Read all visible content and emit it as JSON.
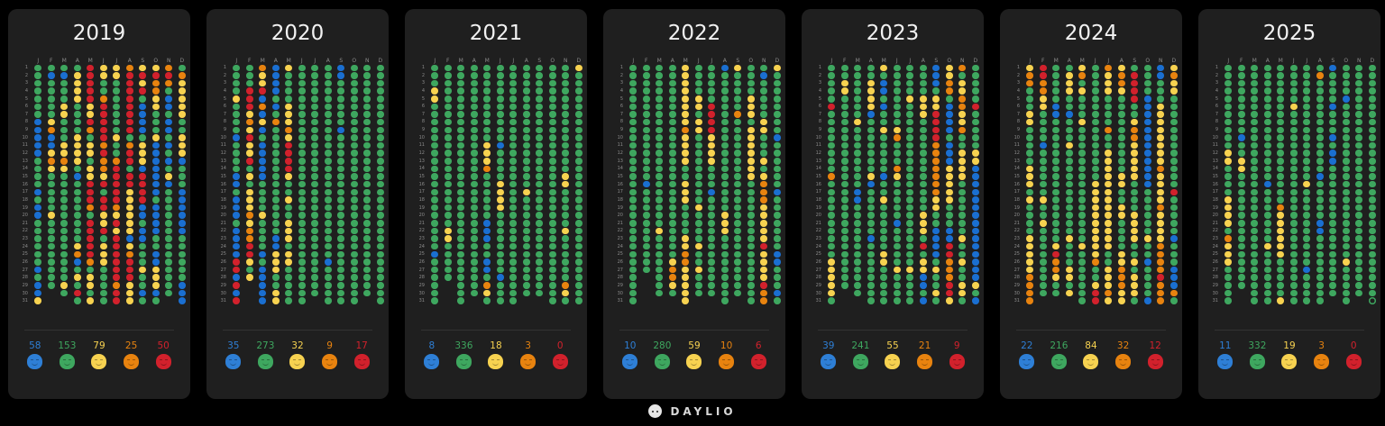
{
  "app": {
    "brand": "DAYLIO"
  },
  "month_labels": [
    "J",
    "F",
    "M",
    "A",
    "M",
    "J",
    "J",
    "A",
    "S",
    "O",
    "N",
    "D"
  ],
  "mood_colors": {
    "g": "#3ea75f",
    "b": "#1a6fd1",
    "y": "#f7d250",
    "o": "#e8830f",
    "r": "#d2212c"
  },
  "mood_order": [
    {
      "key": "b",
      "name": "meh-blue",
      "color": "#2e7fd6"
    },
    {
      "key": "g",
      "name": "good-green",
      "color": "#3ea75f"
    },
    {
      "key": "y",
      "name": "rad-yellow",
      "color": "#f7d250"
    },
    {
      "key": "o",
      "name": "bad-orange",
      "color": "#e8830f"
    },
    {
      "key": "r",
      "name": "awful-red",
      "color": "#d2212c"
    }
  ],
  "years": [
    {
      "year": "2019",
      "counts": [
        "58",
        "153",
        "79",
        "25",
        "50"
      ],
      "months": [
        "gggggggbbbbbggggbgbbggggggbgbbyg",
        "gbgggggyobbyoygggggyggggggggg--",
        "gbgggyygggyyoyggggggggggggggyg",
        "gyyyyggggyyyygbggggggggyobgygrg",
        "rrrrryyrogyygyyrrrogrrrrrogyygyy",
        "yyggorrrrrorooyrgrryyrgyyyggggg",
        "yygggggggyggorrrrroyryrrrrrrorrr",
        "orrrrrrrrgorrgrryyyyyybyorrryyyy",
        "yryrgbbbbgyyybrrrrbbgbbgggyggbgr",
        "yrooyygggybbbbbbbgbbbbggbbyyybgb",
        "orogbbgbbgbgbgybgggggggggggggg",
        "goyyyyyggyyybgggbbbbbbggggggbbbb"
      ]
    },
    {
      "year": "2020",
      "counts": [
        "35",
        "273",
        "32",
        "9",
        "17"
      ],
      "months": [
        "ggggyggggbggggbbgbbbgbbbbrrbrbr",
        "gggrrryoyryyrgygyyyoyoorrygy--",
        "oyyrbobybgbbbbbggggyggggbgbbbbbb",
        "bbbbgbgoggggggggggggggbbyyyggyyg",
        "yggggyyyoyrrrryggyggyyygyyggggg",
        "ggggggggggggggggggggggggggggggg",
        "gggggggggggggggggggggggggggggg",
        "gggggggggggggggggggggggggbgggggb",
        "bbggggggbgggggggggggggggggggggg",
        "ggggggggggggggggggggggggggggggg",
        "gggggggggggggggggggggggggggggg",
        "ggggggggggggggggggggggggggggggg"
      ]
    },
    {
      "year": "2021",
      "counts": [
        "8",
        "336",
        "18",
        "3",
        "0"
      ],
      "months": [
        "gggyygggggggggggggggggggbggggggg",
        "gggggggggggggggggggggyyggggg---",
        "ggggggggggggggggggggggggggggggg",
        "gggggggggggggggggggggggggggggg",
        "ggggggggggyyyoggggggbbbggbbgoyg",
        "ggggggggggbggggyyyyggggggggbgggg",
        "ggggggggggggggggggggggggggggggg",
        "ggggggggggggggggyggggggggggggg",
        "gggggggggggggggggggggggggggggg",
        "ggggggggggggggggggggggggggggggg",
        "ggggggggggggggyygggggyggggggoyg",
        "yggggggggggggggggggggggggggggggg"
      ]
    },
    {
      "year": "2022",
      "counts": [
        "10",
        "280",
        "59",
        "10",
        "6"
      ],
      "months": [
        "ggggggggggggggggggggggggggggggg",
        "gggggggggggggggbggggggggggg---",
        "gggggggggggggggggggggygggggggg",
        "gggggggggggggggggggggggggyooyg",
        "yyyyyyyyoyyyyggyyyggggyyooyyyyy",
        "ggggyygyygggggggggyggggyggyggg",
        "gggggrrrryyyygggbggggggggggggg",
        "bggggggggggggggggggyyyggggggggg",
        "ygggggoggggggggggggggggggggggg",
        "ggggyyygyyyyyyyggggggggggggggggg",
        "gbgggggyygggygyoooyyyyyryyyyroo",
        "yggggggggbggggggbgggggggbbgggbgb"
      ]
    },
    {
      "year": "2023",
      "counts": [
        "39",
        "241",
        "55",
        "21",
        "9"
      ],
      "months": [
        "gggggrggggggggoggggggggggyyyyygg",
        "ggyyggggggggggggggggggggggggg--",
        "gggggggyggggggggbbgggggggggggg",
        "ggyyyybgggggggybggggggbgggggggg",
        "ygbbgbggygggggbggyggggggyyggggg",
        "ggggggggyogggoygggggbgggggyggggg",
        "ggggygggggggggggggggggggggygggg",
        "ggggyyyggggggggggggyyygrgyybbgb",
        "bbbgyyrrrroooooooyyggbbbbgyggyg",
        "yyoogbbbbgbbbyyyyygggbbrrooorryy",
        "ogyyooyyoggyyyygggggggyggyggyyg",
        "gggggrgggggyybbbbbbbbbbbbbbbygb"
      ]
    },
    {
      "year": "2024",
      "counts": [
        "22",
        "216",
        "84",
        "32",
        "12"
      ],
      "months": [
        "yoogggyygggggyyygyggggyyyyyoooor",
        "rrooyyggggbggggggyggyggggggggg-",
        "gggggbbggggggggggggggggyrooygg",
        "gyyyggbgggygggggggggggygggyygy",
        "yogygggygggggggggggggggyggggggg",
        "gggggggggggggggyyyyyyyyyyoggyrr",
        "oyyyggggoggyyyyyyyyyyyyyggyyyoyy",
        "yooyggggggggggyyggyyggggyyoooyyg",
        "grrrrggyooyyyyyggggyyyyggygyyyg",
        "ggggbbbbbbbbbbbbggggggyggbggggb",
        "bbgggyyyyyyyyoyyyyoyyyyooooroooo",
        "yoyyggggggggggggrgggggbgggbbbog"
      ]
    },
    {
      "year": "2025",
      "counts": [
        "11",
        "332",
        "19",
        "3",
        "0"
      ],
      "months": [
        "gggggggggggyyggggyyyygoyyyggggg",
        "gggggggggbggyyggggggggggggggg--",
        "ggggggggggggggggggggggggggggggg",
        "gggggggggggggggbgggggggyggggggg",
        "ggggggggggggggggggoyyyyyygggggyg",
        "gggggyggggggggggggggggggggggggg",
        "gggggggggggggggyggggggggggbgggg",
        "goggggggggggggbgggggbbggggggggg",
        "bggggbgggbgbbggggggggggggggggg",
        "ggggbggggggggggggggggggggygggggg",
        "gggggggggggggggggggggggggggggg",
        "gggggggggggggggggggggggggggggge"
      ]
    }
  ]
}
